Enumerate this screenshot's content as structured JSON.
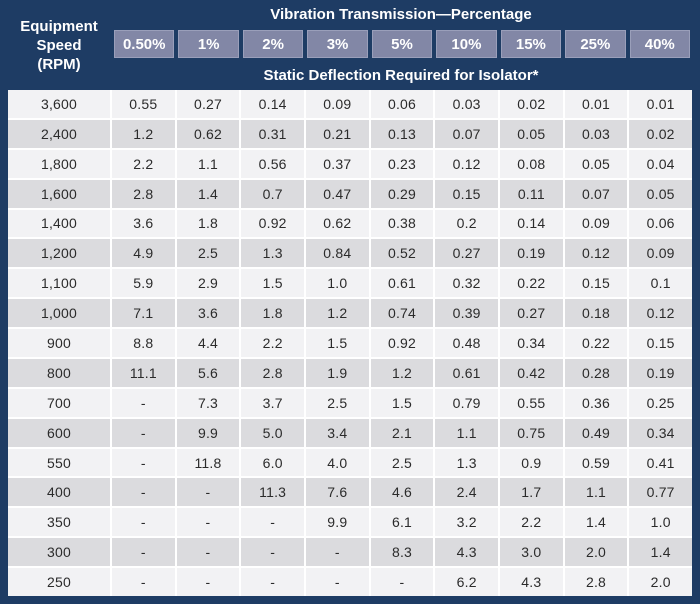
{
  "colors": {
    "header_background": "#1e3c64",
    "column_chip_background": "#8287a6",
    "row_light": "#f2f2f4",
    "row_dark": "#dbdbde",
    "header_text": "#ffffff",
    "data_text": "#2b2b2b"
  },
  "header": {
    "row_label_lines": [
      "Equipment",
      "Speed",
      "(RPM)"
    ],
    "title": "Vibration Transmission—Percentage",
    "subtitle": "Static Deflection Required for Isolator*",
    "columns": [
      "0.50%",
      "1%",
      "2%",
      "3%",
      "5%",
      "10%",
      "15%",
      "25%",
      "40%"
    ]
  },
  "table": {
    "rows": [
      {
        "rpm": "3,600",
        "values": [
          "0.55",
          "0.27",
          "0.14",
          "0.09",
          "0.06",
          "0.03",
          "0.02",
          "0.01",
          "0.01"
        ]
      },
      {
        "rpm": "2,400",
        "values": [
          "1.2",
          "0.62",
          "0.31",
          "0.21",
          "0.13",
          "0.07",
          "0.05",
          "0.03",
          "0.02"
        ]
      },
      {
        "rpm": "1,800",
        "values": [
          "2.2",
          "1.1",
          "0.56",
          "0.37",
          "0.23",
          "0.12",
          "0.08",
          "0.05",
          "0.04"
        ]
      },
      {
        "rpm": "1,600",
        "values": [
          "2.8",
          "1.4",
          "0.7",
          "0.47",
          "0.29",
          "0.15",
          "0.11",
          "0.07",
          "0.05"
        ]
      },
      {
        "rpm": "1,400",
        "values": [
          "3.6",
          "1.8",
          "0.92",
          "0.62",
          "0.38",
          "0.2",
          "0.14",
          "0.09",
          "0.06"
        ]
      },
      {
        "rpm": "1,200",
        "values": [
          "4.9",
          "2.5",
          "1.3",
          "0.84",
          "0.52",
          "0.27",
          "0.19",
          "0.12",
          "0.09"
        ]
      },
      {
        "rpm": "1,100",
        "values": [
          "5.9",
          "2.9",
          "1.5",
          "1.0",
          "0.61",
          "0.32",
          "0.22",
          "0.15",
          "0.1"
        ]
      },
      {
        "rpm": "1,000",
        "values": [
          "7.1",
          "3.6",
          "1.8",
          "1.2",
          "0.74",
          "0.39",
          "0.27",
          "0.18",
          "0.12"
        ]
      },
      {
        "rpm": "900",
        "values": [
          "8.8",
          "4.4",
          "2.2",
          "1.5",
          "0.92",
          "0.48",
          "0.34",
          "0.22",
          "0.15"
        ]
      },
      {
        "rpm": "800",
        "values": [
          "11.1",
          "5.6",
          "2.8",
          "1.9",
          "1.2",
          "0.61",
          "0.42",
          "0.28",
          "0.19"
        ]
      },
      {
        "rpm": "700",
        "values": [
          "-",
          "7.3",
          "3.7",
          "2.5",
          "1.5",
          "0.79",
          "0.55",
          "0.36",
          "0.25"
        ]
      },
      {
        "rpm": "600",
        "values": [
          "-",
          "9.9",
          "5.0",
          "3.4",
          "2.1",
          "1.1",
          "0.75",
          "0.49",
          "0.34"
        ]
      },
      {
        "rpm": "550",
        "values": [
          "-",
          "11.8",
          "6.0",
          "4.0",
          "2.5",
          "1.3",
          "0.9",
          "0.59",
          "0.41"
        ]
      },
      {
        "rpm": "400",
        "values": [
          "-",
          "-",
          "11.3",
          "7.6",
          "4.6",
          "2.4",
          "1.7",
          "1.1",
          "0.77"
        ]
      },
      {
        "rpm": "350",
        "values": [
          "-",
          "-",
          "-",
          "9.9",
          "6.1",
          "3.2",
          "2.2",
          "1.4",
          "1.0"
        ]
      },
      {
        "rpm": "300",
        "values": [
          "-",
          "-",
          "-",
          "-",
          "8.3",
          "4.3",
          "3.0",
          "2.0",
          "1.4"
        ]
      },
      {
        "rpm": "250",
        "values": [
          "-",
          "-",
          "-",
          "-",
          "-",
          "6.2",
          "4.3",
          "2.8",
          "2.0"
        ]
      }
    ]
  }
}
